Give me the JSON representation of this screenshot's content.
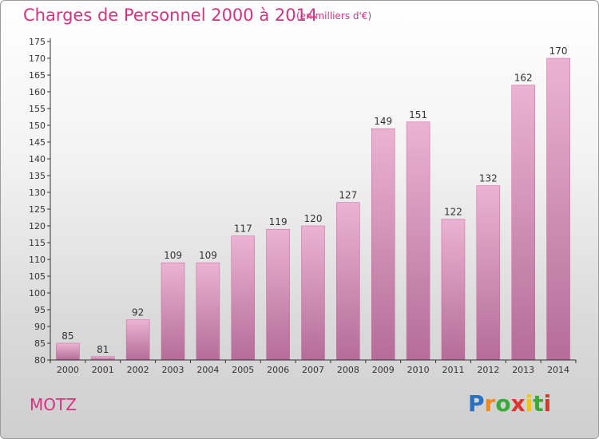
{
  "title": "Charges de Personnel 2000 à 2014",
  "subtitle": "(en milliers d'€)",
  "commune": "MOTZ",
  "brand": {
    "letters": [
      "P",
      "r",
      "o",
      "x",
      "i",
      "t",
      "i"
    ],
    "colors": [
      "#2a6fc0",
      "#f08a1c",
      "#3aa93a",
      "#e0322f",
      "#f2c21a",
      "#3aa93a",
      "#e0322f"
    ]
  },
  "colors": {
    "bar": "#d98ab6",
    "bar_top": "#ebb3d2",
    "bar_bottom": "#b46d98",
    "text": "#d4347f",
    "axis": "#333333"
  },
  "chart_data": {
    "type": "bar",
    "title": "Charges de Personnel 2000 à 2014",
    "subtitle": "(en milliers d'€)",
    "xlabel": "",
    "ylabel": "",
    "categories": [
      "2000",
      "2001",
      "2002",
      "2003",
      "2004",
      "2005",
      "2006",
      "2007",
      "2008",
      "2009",
      "2010",
      "2011",
      "2012",
      "2013",
      "2014"
    ],
    "values": [
      85,
      81,
      92,
      109,
      109,
      117,
      119,
      120,
      127,
      149,
      151,
      122,
      132,
      162,
      170
    ],
    "ylim": [
      80,
      175
    ],
    "yticks": [
      80,
      85,
      90,
      95,
      100,
      105,
      110,
      115,
      120,
      125,
      130,
      135,
      140,
      145,
      150,
      155,
      160,
      165,
      170,
      175
    ],
    "grid": false,
    "legend": "none"
  }
}
